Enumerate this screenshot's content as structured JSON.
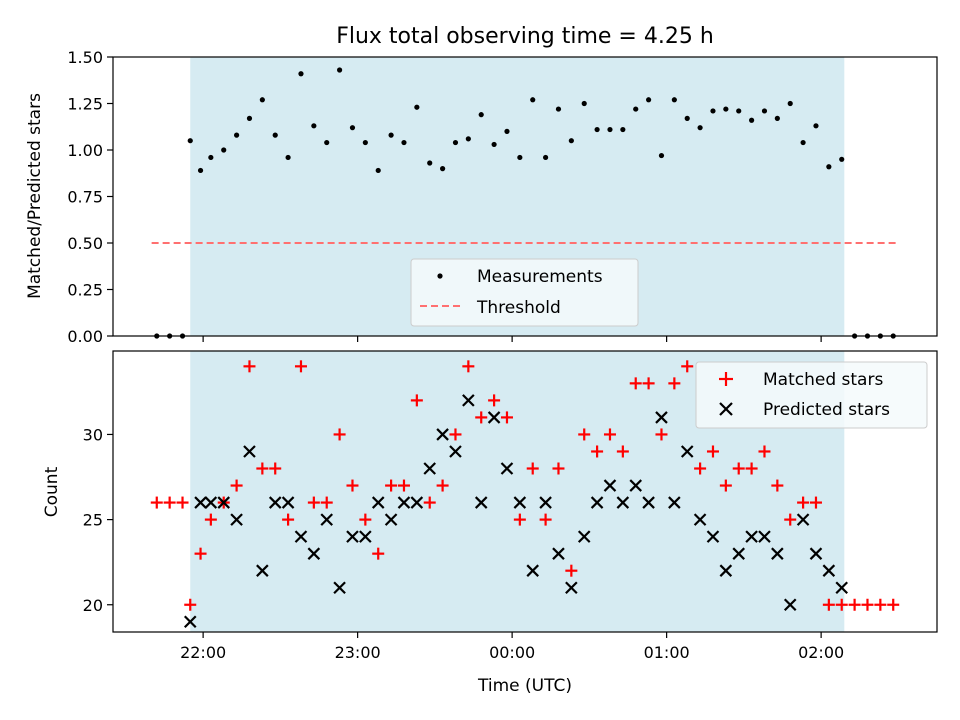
{
  "chart_data": [
    {
      "type": "scatter",
      "title": "Flux total observing time = 4.25 h",
      "xlabel": "",
      "ylabel": "Matched/Predicted stars",
      "xlim": [
        "21:25",
        "02:45"
      ],
      "ylim": [
        0,
        1.5
      ],
      "yticks": [
        "0.00",
        "0.25",
        "0.50",
        "0.75",
        "1.00",
        "1.25",
        "1.50"
      ],
      "observing_window": {
        "start": "21:55",
        "end": "02:09"
      },
      "threshold": {
        "name": "Threshold",
        "value": 0.5,
        "x_start": "21:40",
        "x_end": "02:29",
        "color": "#ff7070"
      },
      "legend": {
        "position": "lower-center",
        "entries": [
          "Measurements",
          "Threshold"
        ]
      },
      "series": [
        {
          "name": "Measurements",
          "color": "#000000",
          "points": [
            [
              "21:42",
              0.0
            ],
            [
              "21:47",
              0.0
            ],
            [
              "21:52",
              0.0
            ],
            [
              "21:55",
              1.05
            ],
            [
              "21:59",
              0.89
            ],
            [
              "22:03",
              0.96
            ],
            [
              "22:08",
              1.0
            ],
            [
              "22:13",
              1.08
            ],
            [
              "22:18",
              1.17
            ],
            [
              "22:23",
              1.27
            ],
            [
              "22:28",
              1.08
            ],
            [
              "22:33",
              0.96
            ],
            [
              "22:38",
              1.41
            ],
            [
              "22:43",
              1.13
            ],
            [
              "22:48",
              1.04
            ],
            [
              "22:53",
              1.43
            ],
            [
              "22:58",
              1.12
            ],
            [
              "23:03",
              1.04
            ],
            [
              "23:08",
              0.89
            ],
            [
              "23:13",
              1.08
            ],
            [
              "23:18",
              1.04
            ],
            [
              "23:23",
              1.23
            ],
            [
              "23:28",
              0.93
            ],
            [
              "23:33",
              0.9
            ],
            [
              "23:38",
              1.04
            ],
            [
              "23:43",
              1.06
            ],
            [
              "23:48",
              1.19
            ],
            [
              "23:53",
              1.03
            ],
            [
              "23:58",
              1.1
            ],
            [
              "00:03",
              0.96
            ],
            [
              "00:08",
              1.27
            ],
            [
              "00:13",
              0.96
            ],
            [
              "00:18",
              1.22
            ],
            [
              "00:23",
              1.05
            ],
            [
              "00:28",
              1.25
            ],
            [
              "00:33",
              1.11
            ],
            [
              "00:38",
              1.11
            ],
            [
              "00:43",
              1.11
            ],
            [
              "00:48",
              1.22
            ],
            [
              "00:53",
              1.27
            ],
            [
              "00:58",
              0.97
            ],
            [
              "01:03",
              1.27
            ],
            [
              "01:08",
              1.17
            ],
            [
              "01:13",
              1.12
            ],
            [
              "01:18",
              1.21
            ],
            [
              "01:23",
              1.22
            ],
            [
              "01:28",
              1.21
            ],
            [
              "01:33",
              1.16
            ],
            [
              "01:38",
              1.21
            ],
            [
              "01:43",
              1.17
            ],
            [
              "01:48",
              1.25
            ],
            [
              "01:53",
              1.04
            ],
            [
              "01:58",
              1.13
            ],
            [
              "02:03",
              0.91
            ],
            [
              "02:08",
              0.95
            ],
            [
              "02:13",
              0.0
            ],
            [
              "02:18",
              0.0
            ],
            [
              "02:23",
              0.0
            ],
            [
              "02:28",
              0.0
            ]
          ]
        }
      ]
    },
    {
      "type": "scatter",
      "title": "",
      "xlabel": "Time (UTC)",
      "ylabel": "Count",
      "xlim": [
        "21:25",
        "02:45"
      ],
      "ylim": [
        18.4,
        34.9
      ],
      "yticks": [
        "20",
        "25",
        "30"
      ],
      "xticks": [
        "22:00",
        "23:00",
        "00:00",
        "01:00",
        "02:00"
      ],
      "observing_window": {
        "start": "21:55",
        "end": "02:09"
      },
      "legend": {
        "position": "top-right",
        "entries": [
          "Matched stars",
          "Predicted stars"
        ]
      },
      "series": [
        {
          "name": "Matched stars",
          "marker": "plus",
          "color": "#ff0000",
          "points": [
            [
              "21:42",
              26
            ],
            [
              "21:47",
              26
            ],
            [
              "21:52",
              26
            ],
            [
              "21:55",
              20
            ],
            [
              "21:59",
              23
            ],
            [
              "22:03",
              25
            ],
            [
              "22:08",
              26
            ],
            [
              "22:13",
              27
            ],
            [
              "22:18",
              34
            ],
            [
              "22:23",
              28
            ],
            [
              "22:28",
              28
            ],
            [
              "22:33",
              25
            ],
            [
              "22:38",
              34
            ],
            [
              "22:43",
              26
            ],
            [
              "22:48",
              26
            ],
            [
              "22:53",
              30
            ],
            [
              "22:58",
              27
            ],
            [
              "23:03",
              25
            ],
            [
              "23:08",
              23
            ],
            [
              "23:13",
              27
            ],
            [
              "23:18",
              27
            ],
            [
              "23:23",
              32
            ],
            [
              "23:28",
              26
            ],
            [
              "23:33",
              27
            ],
            [
              "23:38",
              30
            ],
            [
              "23:43",
              34
            ],
            [
              "23:48",
              31
            ],
            [
              "23:53",
              32
            ],
            [
              "23:58",
              31
            ],
            [
              "00:03",
              25
            ],
            [
              "00:08",
              28
            ],
            [
              "00:13",
              25
            ],
            [
              "00:18",
              28
            ],
            [
              "00:23",
              22
            ],
            [
              "00:28",
              30
            ],
            [
              "00:33",
              29
            ],
            [
              "00:38",
              30
            ],
            [
              "00:43",
              29
            ],
            [
              "00:48",
              33
            ],
            [
              "00:53",
              33
            ],
            [
              "00:58",
              30
            ],
            [
              "01:03",
              33
            ],
            [
              "01:08",
              34
            ],
            [
              "01:13",
              28
            ],
            [
              "01:18",
              29
            ],
            [
              "01:23",
              27
            ],
            [
              "01:28",
              28
            ],
            [
              "01:33",
              28
            ],
            [
              "01:38",
              29
            ],
            [
              "01:43",
              27
            ],
            [
              "01:48",
              25
            ],
            [
              "01:53",
              26
            ],
            [
              "01:58",
              26
            ],
            [
              "02:03",
              20
            ],
            [
              "02:08",
              20
            ],
            [
              "02:13",
              20
            ],
            [
              "02:18",
              20
            ],
            [
              "02:23",
              20
            ],
            [
              "02:28",
              20
            ]
          ]
        },
        {
          "name": "Predicted stars",
          "marker": "x",
          "color": "#000000",
          "points": [
            [
              "21:55",
              19
            ],
            [
              "21:59",
              26
            ],
            [
              "22:03",
              26
            ],
            [
              "22:08",
              26
            ],
            [
              "22:13",
              25
            ],
            [
              "22:18",
              29
            ],
            [
              "22:23",
              22
            ],
            [
              "22:28",
              26
            ],
            [
              "22:33",
              26
            ],
            [
              "22:38",
              24
            ],
            [
              "22:43",
              23
            ],
            [
              "22:48",
              25
            ],
            [
              "22:53",
              21
            ],
            [
              "22:58",
              24
            ],
            [
              "23:03",
              24
            ],
            [
              "23:08",
              26
            ],
            [
              "23:13",
              25
            ],
            [
              "23:18",
              26
            ],
            [
              "23:23",
              26
            ],
            [
              "23:28",
              28
            ],
            [
              "23:33",
              30
            ],
            [
              "23:38",
              29
            ],
            [
              "23:43",
              32
            ],
            [
              "23:48",
              26
            ],
            [
              "23:53",
              31
            ],
            [
              "23:58",
              28
            ],
            [
              "00:03",
              26
            ],
            [
              "00:08",
              22
            ],
            [
              "00:13",
              26
            ],
            [
              "00:18",
              23
            ],
            [
              "00:23",
              21
            ],
            [
              "00:28",
              24
            ],
            [
              "00:33",
              26
            ],
            [
              "00:38",
              27
            ],
            [
              "00:43",
              26
            ],
            [
              "00:48",
              27
            ],
            [
              "00:53",
              26
            ],
            [
              "00:58",
              31
            ],
            [
              "01:03",
              26
            ],
            [
              "01:08",
              29
            ],
            [
              "01:13",
              25
            ],
            [
              "01:18",
              24
            ],
            [
              "01:23",
              22
            ],
            [
              "01:28",
              23
            ],
            [
              "01:33",
              24
            ],
            [
              "01:38",
              24
            ],
            [
              "01:43",
              23
            ],
            [
              "01:48",
              20
            ],
            [
              "01:53",
              25
            ],
            [
              "01:58",
              23
            ],
            [
              "02:03",
              22
            ],
            [
              "02:08",
              21
            ]
          ]
        }
      ]
    }
  ]
}
